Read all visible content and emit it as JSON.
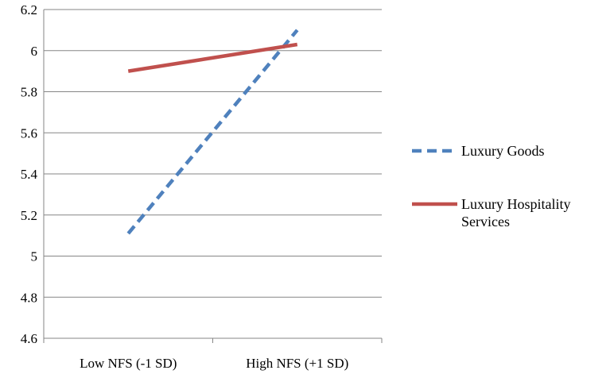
{
  "chart_data": {
    "type": "line",
    "title": "",
    "xlabel": "",
    "ylabel": "",
    "categories": [
      "Low NFS (-1 SD)",
      "High NFS (+1 SD)"
    ],
    "ylim": [
      4.6,
      6.2
    ],
    "yticks": [
      "4.6",
      "4.8",
      "5",
      "5.2",
      "5.4",
      "5.6",
      "5.8",
      "6",
      "6.2"
    ],
    "grid": "horizontal",
    "legend_position": "right",
    "series": [
      {
        "name": "Luxury Goods",
        "values": [
          5.11,
          6.1
        ],
        "color": "#4F81BD",
        "style": "dashed"
      },
      {
        "name": "Luxury Hospitality Services",
        "values": [
          5.9,
          6.03
        ],
        "color": "#C0504D",
        "style": "solid"
      }
    ]
  }
}
